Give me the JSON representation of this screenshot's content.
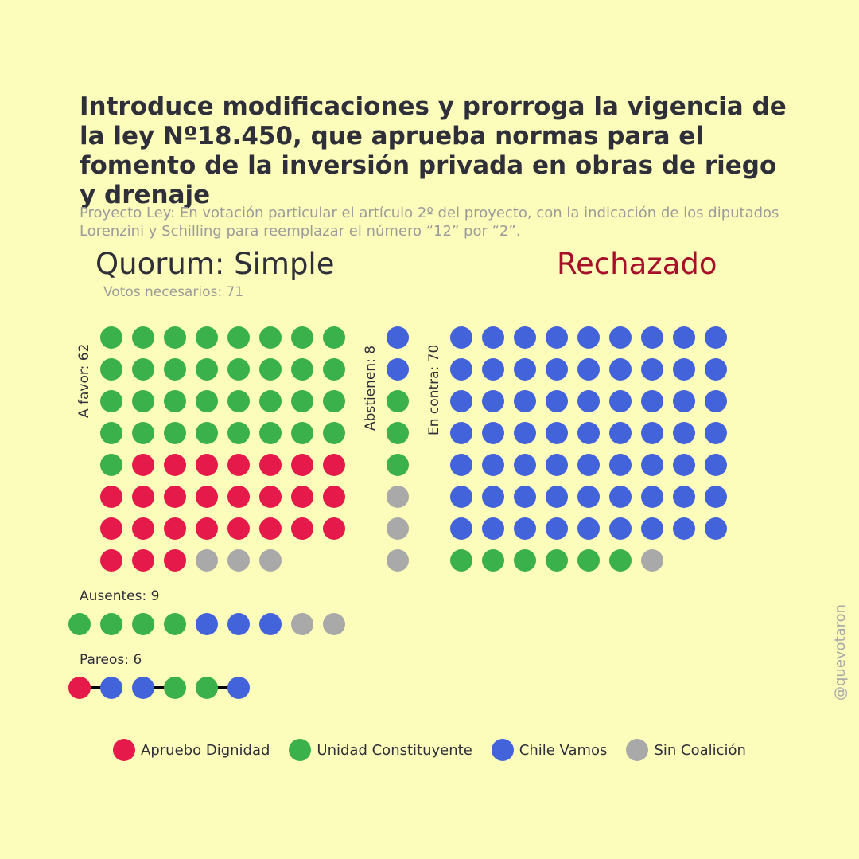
{
  "chart_data": {
    "type": "dot-grid",
    "title": "Introduce modificaciones y prorroga la vigencia de la ley Nº18.450, que aprueba normas para el fomento de la inversión privada en obras de riego y drenaje",
    "subtitle": "Proyecto Ley: En votación particular el artículo 2º del proyecto, con la indicación de los diputados Lorenzini y Schilling para reemplazar el número “12” por “2”.",
    "quorum_label": "Quorum: Simple",
    "result_label": "Rechazado",
    "votes_needed_label": "Votos necesarios: 71",
    "coalitions": [
      {
        "key": "AD",
        "name": "Apruebo Dignidad",
        "color": "#e5194a"
      },
      {
        "key": "UC",
        "name": "Unidad Constituyente",
        "color": "#3bb14b"
      },
      {
        "key": "CV",
        "name": "Chile Vamos",
        "color": "#4263da"
      },
      {
        "key": "SC",
        "name": "Sin Coalición",
        "color": "#a9a9a9"
      }
    ],
    "groups": {
      "a_favor": {
        "label": "A favor: 62",
        "total": 62,
        "counts": {
          "UC": 33,
          "AD": 26,
          "SC": 3,
          "CV": 0
        }
      },
      "abstienen": {
        "label": "Abstienen: 8",
        "total": 8,
        "counts": {
          "CV": 2,
          "UC": 3,
          "SC": 3,
          "AD": 0
        }
      },
      "en_contra": {
        "label": "En contra: 70",
        "total": 70,
        "counts": {
          "CV": 63,
          "UC": 6,
          "SC": 1,
          "AD": 0
        }
      },
      "ausentes": {
        "label": "Ausentes: 9",
        "total": 9,
        "counts": {
          "UC": 4,
          "CV": 3,
          "SC": 2,
          "AD": 0
        }
      },
      "pareos": {
        "label": "Pareos: 6",
        "total": 6,
        "pairs": [
          [
            "AD",
            "CV"
          ],
          [
            "CV",
            "UC"
          ],
          [
            "UC",
            "CV"
          ]
        ]
      }
    }
  },
  "handle": "@quevotaron"
}
